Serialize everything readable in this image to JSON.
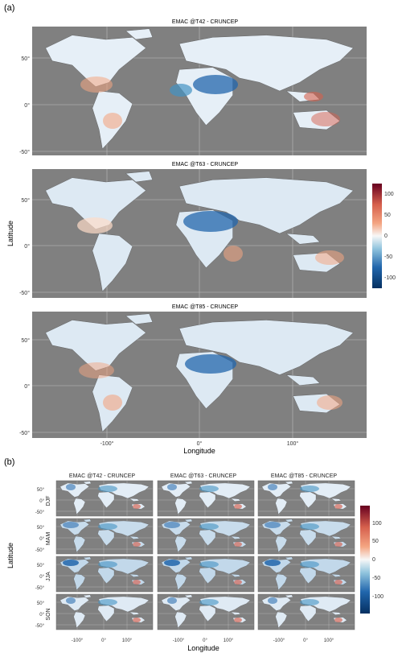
{
  "panel_a": {
    "label": "(a)",
    "ylabel": "Latitude",
    "xlabel": "Longitude",
    "maps": [
      {
        "title": "EMAC @T42 - CRUNCEP"
      },
      {
        "title": "EMAC @T63 - CRUNCEP"
      },
      {
        "title": "EMAC @T85 - CRUNCEP"
      }
    ],
    "y_ticks": [
      "50°",
      "0°",
      "-50°"
    ],
    "x_ticks": [
      "-100°",
      "0°",
      "100°"
    ],
    "colorbar_ticks": [
      "100",
      "50",
      "0",
      "-50",
      "-100"
    ]
  },
  "panel_b": {
    "label": "(b)",
    "ylabel": "Latitude",
    "xlabel": "Longitude",
    "columns": [
      "EMAC @T42 - CRUNCEP",
      "EMAC @T63 - CRUNCEP",
      "EMAC @T85 - CRUNCEP"
    ],
    "rows": [
      "DJF",
      "MAM",
      "JJA",
      "SON"
    ],
    "y_ticks": [
      "50°",
      "0°",
      "-50°"
    ],
    "x_ticks": [
      "-100°",
      "0°",
      "100°"
    ],
    "colorbar_ticks": [
      "100",
      "50",
      "0",
      "-50",
      "-100"
    ]
  },
  "colors": {
    "ocean": "#808080",
    "land_neutral": "#f5f5f5",
    "positive": "#67001f",
    "negative": "#053061"
  },
  "chart_data": [
    {
      "type": "heatmap",
      "title": "EMAC @T42 - CRUNCEP",
      "xlabel": "Longitude",
      "ylabel": "Latitude",
      "xlim": [
        -180,
        180
      ],
      "ylim": [
        -58,
        85
      ],
      "colorbar": [
        -130,
        130
      ]
    },
    {
      "type": "heatmap",
      "title": "EMAC @T63 - CRUNCEP",
      "xlabel": "Longitude",
      "ylabel": "Latitude",
      "xlim": [
        -180,
        180
      ],
      "ylim": [
        -58,
        85
      ],
      "colorbar": [
        -130,
        130
      ]
    },
    {
      "type": "heatmap",
      "title": "EMAC @T85 - CRUNCEP",
      "xlabel": "Longitude",
      "ylabel": "Latitude",
      "xlim": [
        -180,
        180
      ],
      "ylim": [
        -58,
        85
      ],
      "colorbar": [
        -130,
        130
      ]
    }
  ]
}
